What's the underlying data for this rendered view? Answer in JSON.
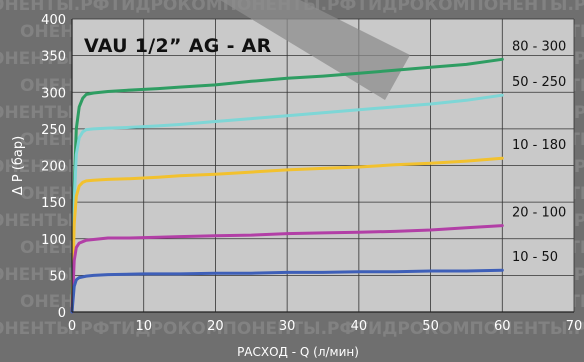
{
  "chart_data": {
    "type": "line",
    "title": "VAU 1/2” AG - AR",
    "xlabel": "РАСХОД - Q (л/мин)",
    "ylabel": "Δ P (бар)",
    "xlim": [
      0,
      70
    ],
    "ylim": [
      0,
      400
    ],
    "xticks": [
      0,
      10,
      20,
      30,
      40,
      50,
      60,
      70
    ],
    "yticks": [
      0,
      50,
      100,
      150,
      200,
      250,
      300,
      350,
      400
    ],
    "grid": true,
    "series": [
      {
        "name": "80 - 300",
        "color": "#2e9d62",
        "points": [
          [
            0,
            0
          ],
          [
            0.3,
            170
          ],
          [
            0.6,
            250
          ],
          [
            1,
            280
          ],
          [
            1.5,
            292
          ],
          [
            2,
            297
          ],
          [
            3,
            299
          ],
          [
            5,
            301
          ],
          [
            8,
            303
          ],
          [
            12,
            305
          ],
          [
            15,
            307
          ],
          [
            20,
            310
          ],
          [
            25,
            315
          ],
          [
            30,
            319
          ],
          [
            35,
            322
          ],
          [
            40,
            326
          ],
          [
            45,
            330
          ],
          [
            50,
            334
          ],
          [
            55,
            338
          ],
          [
            60,
            345
          ]
        ]
      },
      {
        "name": "50 - 250",
        "color": "#7ed6d6",
        "points": [
          [
            0,
            0
          ],
          [
            0.3,
            150
          ],
          [
            0.6,
            215
          ],
          [
            1,
            238
          ],
          [
            1.5,
            246
          ],
          [
            2,
            249
          ],
          [
            3,
            250
          ],
          [
            5,
            251
          ],
          [
            8,
            252
          ],
          [
            12,
            254
          ],
          [
            15,
            256
          ],
          [
            20,
            260
          ],
          [
            25,
            264
          ],
          [
            30,
            268
          ],
          [
            35,
            272
          ],
          [
            40,
            276
          ],
          [
            45,
            280
          ],
          [
            50,
            284
          ],
          [
            55,
            289
          ],
          [
            60,
            296
          ]
        ]
      },
      {
        "name": "10 - 180",
        "color": "#f2c12e",
        "points": [
          [
            0,
            0
          ],
          [
            0.3,
            120
          ],
          [
            0.6,
            158
          ],
          [
            1,
            172
          ],
          [
            1.5,
            177
          ],
          [
            2,
            179
          ],
          [
            3,
            180
          ],
          [
            5,
            181
          ],
          [
            8,
            182
          ],
          [
            12,
            184
          ],
          [
            15,
            186
          ],
          [
            20,
            188
          ],
          [
            25,
            191
          ],
          [
            30,
            194
          ],
          [
            35,
            196
          ],
          [
            40,
            198
          ],
          [
            45,
            201
          ],
          [
            50,
            203
          ],
          [
            55,
            206
          ],
          [
            60,
            210
          ]
        ]
      },
      {
        "name": "20 - 100",
        "color": "#b23fa6",
        "points": [
          [
            0,
            0
          ],
          [
            0.3,
            70
          ],
          [
            0.6,
            88
          ],
          [
            1,
            94
          ],
          [
            2,
            98
          ],
          [
            3,
            99
          ],
          [
            5,
            101
          ],
          [
            8,
            101
          ],
          [
            12,
            102
          ],
          [
            15,
            103
          ],
          [
            20,
            104
          ],
          [
            25,
            105
          ],
          [
            30,
            107
          ],
          [
            35,
            108
          ],
          [
            40,
            109
          ],
          [
            45,
            110
          ],
          [
            50,
            112
          ],
          [
            55,
            115
          ],
          [
            60,
            118
          ]
        ]
      },
      {
        "name": "10 - 50",
        "color": "#3e5fb8",
        "points": [
          [
            0,
            0
          ],
          [
            0.3,
            35
          ],
          [
            0.6,
            44
          ],
          [
            1,
            47
          ],
          [
            2,
            49
          ],
          [
            3,
            50
          ],
          [
            5,
            51
          ],
          [
            10,
            52
          ],
          [
            15,
            52
          ],
          [
            20,
            53
          ],
          [
            25,
            53
          ],
          [
            30,
            54
          ],
          [
            35,
            54
          ],
          [
            40,
            55
          ],
          [
            45,
            55
          ],
          [
            50,
            56
          ],
          [
            55,
            56
          ],
          [
            60,
            57
          ]
        ]
      }
    ]
  },
  "watermark_text": "ОНЕНТЫ.РФТИДРОКОМПОНЕНТЫ.РФТИДРОКОМПОНЕНТЫ.РФ",
  "colors": {
    "plot_bg": "#c9c9c9",
    "page_bg": "#6f6f6f",
    "grid": "#333333",
    "text_light": "#ffffff",
    "text_dark": "#111111"
  }
}
